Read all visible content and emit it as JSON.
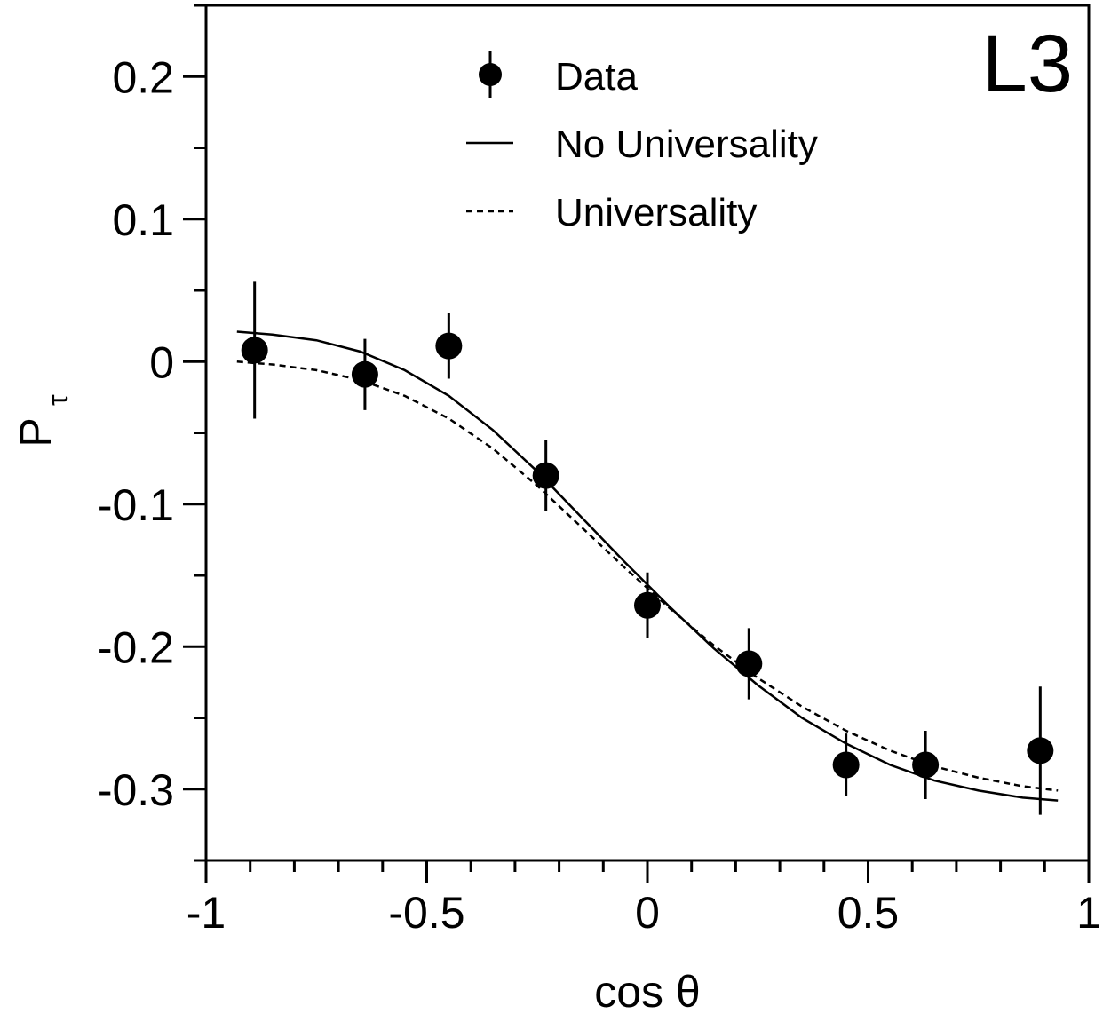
{
  "chart_data": {
    "type": "scatter",
    "experiment_label": "L3",
    "xlabel": "cos θ",
    "ylabel_main": "P",
    "ylabel_sub": "τ",
    "xlim": [
      -1,
      1
    ],
    "ylim": [
      -0.35,
      0.25
    ],
    "x_ticks": [
      -1,
      -0.5,
      0,
      0.5,
      1
    ],
    "x_tick_labels": [
      "-1",
      "-0.5",
      "0",
      "0.5",
      "1"
    ],
    "y_ticks": [
      -0.3,
      -0.2,
      -0.1,
      0,
      0.1,
      0.2
    ],
    "y_tick_labels": [
      "-0.3",
      "-0.2",
      "-0.1",
      "0",
      "0.1",
      "0.2"
    ],
    "legend_position": "top-center",
    "legend": [
      {
        "label": "Data",
        "style": "marker"
      },
      {
        "label": "No Universality",
        "style": "solid"
      },
      {
        "label": "Universality",
        "style": "dashed"
      }
    ],
    "data_series": {
      "name": "Data",
      "points": [
        {
          "x": -0.89,
          "y": 0.008,
          "err": 0.048
        },
        {
          "x": -0.64,
          "y": -0.009,
          "err": 0.025
        },
        {
          "x": -0.45,
          "y": 0.011,
          "err": 0.023
        },
        {
          "x": -0.23,
          "y": -0.08,
          "err": 0.025
        },
        {
          "x": 0.0,
          "y": -0.171,
          "err": 0.023
        },
        {
          "x": 0.23,
          "y": -0.212,
          "err": 0.025
        },
        {
          "x": 0.45,
          "y": -0.283,
          "err": 0.022
        },
        {
          "x": 0.63,
          "y": -0.283,
          "err": 0.024
        },
        {
          "x": 0.89,
          "y": -0.273,
          "err": 0.045
        }
      ]
    },
    "curves": [
      {
        "name": "No Universality",
        "style": "solid",
        "x": [
          -0.93,
          -0.85,
          -0.75,
          -0.65,
          -0.55,
          -0.45,
          -0.35,
          -0.25,
          -0.15,
          -0.05,
          0.05,
          0.15,
          0.25,
          0.35,
          0.45,
          0.55,
          0.65,
          0.75,
          0.85,
          0.93
        ],
        "y": [
          0.021,
          0.019,
          0.015,
          0.007,
          -0.006,
          -0.024,
          -0.048,
          -0.077,
          -0.109,
          -0.141,
          -0.172,
          -0.201,
          -0.227,
          -0.25,
          -0.268,
          -0.283,
          -0.294,
          -0.301,
          -0.306,
          -0.308
        ]
      },
      {
        "name": "Universality",
        "style": "dashed",
        "x": [
          -0.93,
          -0.85,
          -0.75,
          -0.65,
          -0.55,
          -0.45,
          -0.35,
          -0.25,
          -0.15,
          -0.05,
          0.05,
          0.15,
          0.25,
          0.35,
          0.45,
          0.55,
          0.65,
          0.75,
          0.85,
          0.93
        ],
        "y": [
          0.0,
          -0.002,
          -0.006,
          -0.013,
          -0.024,
          -0.04,
          -0.061,
          -0.087,
          -0.116,
          -0.145,
          -0.173,
          -0.199,
          -0.222,
          -0.242,
          -0.259,
          -0.273,
          -0.284,
          -0.292,
          -0.298,
          -0.301
        ]
      }
    ]
  }
}
